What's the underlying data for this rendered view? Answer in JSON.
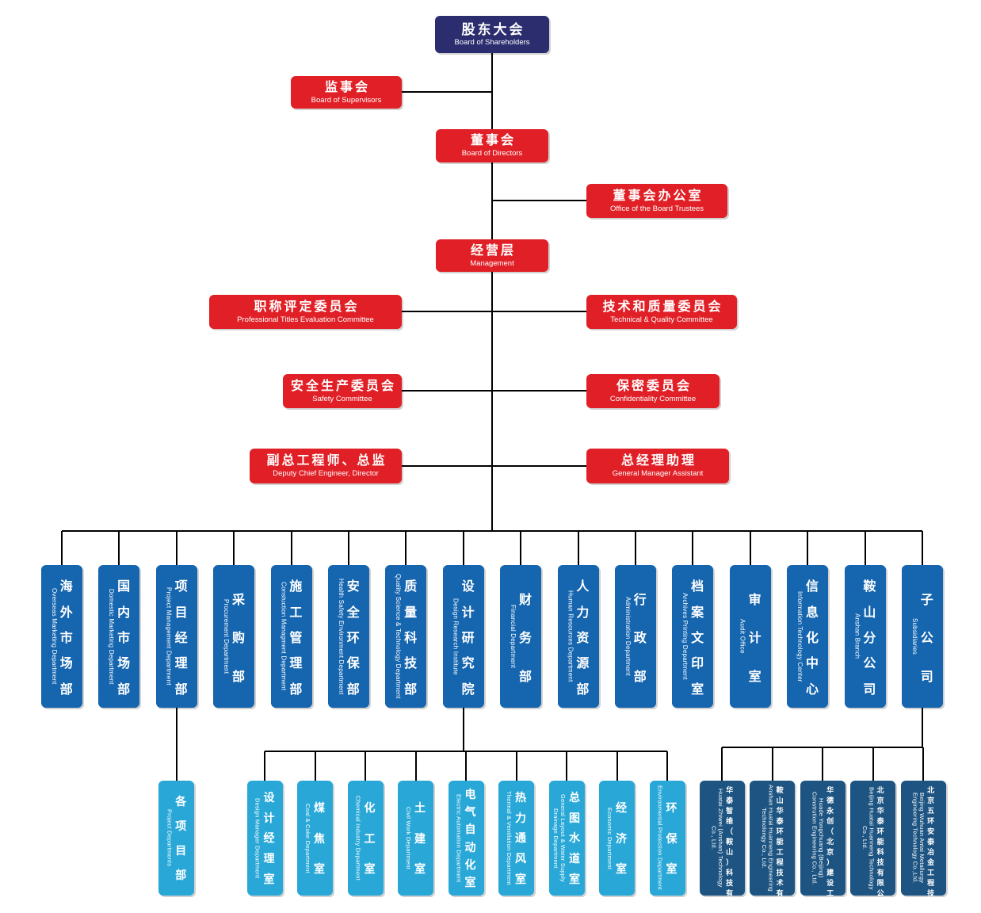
{
  "colors": {
    "navy": "#2B2D6E",
    "red": "#E02026",
    "dept_blue": "#1565AF",
    "light_blue": "#29A8D8",
    "steel_blue": "#1D5482",
    "line": "#000000"
  },
  "top_nodes": {
    "shareholders": {
      "zh": "股东大会",
      "en": "Board of Shareholders"
    },
    "supervisors": {
      "zh": "监事会",
      "en": "Board of Supervisors"
    },
    "directors": {
      "zh": "董事会",
      "en": "Board of Directors"
    },
    "board_office": {
      "zh": "董事会办公室",
      "en": "Office of the Board Trustees"
    },
    "management": {
      "zh": "经营层",
      "en": "Management"
    },
    "titles_committee": {
      "zh": "职称评定委员会",
      "en": "Professional Titles Evaluation Committee"
    },
    "tech_quality_committee": {
      "zh": "技术和质量委员会",
      "en": "Technical & Quality Committee"
    },
    "safety_committee": {
      "zh": "安全生产委员会",
      "en": "Safety Committee"
    },
    "confidentiality_committee": {
      "zh": "保密委员会",
      "en": "Confidentiality Committee"
    },
    "deputy_chief": {
      "zh": "副总工程师、总监",
      "en": "Deputy Chief Engineer, Director"
    },
    "gm_assistant": {
      "zh": "总经理助理",
      "en": "General Manager Assistant"
    }
  },
  "departments": [
    {
      "zh": "海外市场部",
      "en": "Overseas Marketing Department"
    },
    {
      "zh": "国内市场部",
      "en": "Domestic Marketing Department"
    },
    {
      "zh": "项目经理部",
      "en": "Project Management Department"
    },
    {
      "zh": "采购部",
      "en": "Procurement Department"
    },
    {
      "zh": "施工管理部",
      "en": "Constuction Managment Department"
    },
    {
      "zh": "安全环保部",
      "en": "Health Safety Environment Department"
    },
    {
      "zh": "质量科技部",
      "en": "Quality Science & Technology Department"
    },
    {
      "zh": "设计研究院",
      "en": "Design Research Institute"
    },
    {
      "zh": "财务部",
      "en": "Financial Department"
    },
    {
      "zh": "人力资源部",
      "en": "Human Resources Department"
    },
    {
      "zh": "行政部",
      "en": "Administration Department"
    },
    {
      "zh": "档案文印室",
      "en": "Archives Printing Department"
    },
    {
      "zh": "审计室",
      "en": "Audit Office"
    },
    {
      "zh": "信息化中心",
      "en": "Information Technology Center"
    },
    {
      "zh": "鞍山分公司",
      "en": "Anshan Branch"
    },
    {
      "zh": "子公司",
      "en": "Subsidiaries"
    }
  ],
  "rooms": [
    {
      "zh": "各项目部",
      "en": "Project Departments"
    },
    {
      "zh": "设计经理室",
      "en": "Design Manager Department"
    },
    {
      "zh": "煤焦室",
      "en": "Coal & Coke Department"
    },
    {
      "zh": "化工室",
      "en": "Chemical Industry Department"
    },
    {
      "zh": "土建室",
      "en": "Civil Work Department"
    },
    {
      "zh": "电气自动化室",
      "en": "Electric Automation Department"
    },
    {
      "zh": "热力通风室",
      "en": "Thermal & Ventilation Department"
    },
    {
      "zh": "总图水道室",
      "en": "General Layout & Water Supply Drainage Department"
    },
    {
      "zh": "经济室",
      "en": "Economic Department"
    },
    {
      "zh": "环保室",
      "en": "Environmental Protection Department"
    }
  ],
  "subsidiaries": [
    {
      "zh": "华泰智维（鞍山）科技有限公司",
      "en": "Huatai Zhiwei (Anshan) Technology Co., Ltd."
    },
    {
      "zh": "鞍山华泰环能工程技术有限公司",
      "en": "Anshan Huatai Huanneng Engineering Technolongy Co., Ltd."
    },
    {
      "zh": "华德永创（北京）建设工程有限公司",
      "en": "Huade Yongchuang (Beijing) Constrution Engineering Co., Ltd."
    },
    {
      "zh": "北京华泰环能科技有限公司",
      "en": "Beijing Huatai Huanneng Technology Co., Ltd."
    },
    {
      "zh": "北京五环安泰冶金工程技术有限公司",
      "en": "Beijing Wuhuan Antai Metallurgy Engineering Technology Co.,Ltd."
    }
  ]
}
